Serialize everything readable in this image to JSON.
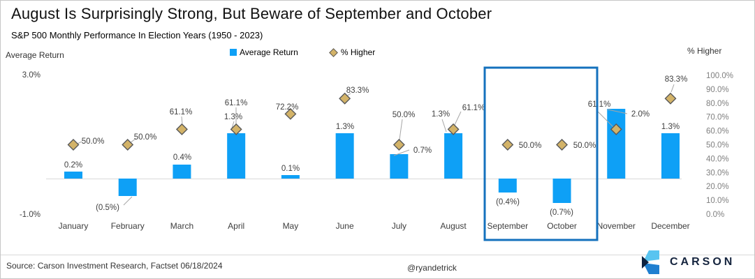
{
  "header": {
    "title": "August Is Surprisingly Strong, But Beware of September and October",
    "subtitle": "S&P 500 Monthly Performance In Election Years (1950 - 2023)"
  },
  "legend": {
    "items": [
      {
        "label": "Average Return",
        "marker": "blue-square"
      },
      {
        "label": "% Higher",
        "marker": "gold-diamond"
      }
    ]
  },
  "axes": {
    "left_title": "Average Return",
    "left_ticks": [
      "3.0%",
      "-1.0%"
    ],
    "right_title": "% Higher",
    "right_ticks": [
      "100.0%",
      "90.0%",
      "80.0%",
      "70.0%",
      "60.0%",
      "50.0%",
      "40.0%",
      "30.0%",
      "20.0%",
      "10.0%",
      "0.0%"
    ]
  },
  "chart_data": {
    "type": "combo-bar-scatter",
    "title": "S&P 500 Monthly Performance In Election Years (1950 - 2023)",
    "categories": [
      "January",
      "February",
      "March",
      "April",
      "May",
      "June",
      "July",
      "August",
      "September",
      "October",
      "November",
      "December"
    ],
    "series": [
      {
        "name": "Average Return",
        "type": "bar",
        "axis": "left",
        "color": "#0ea0f6",
        "values": [
          0.2,
          -0.5,
          0.4,
          1.3,
          0.1,
          1.3,
          0.7,
          1.3,
          -0.4,
          -0.7,
          2.0,
          1.3
        ],
        "labels": [
          "0.2%",
          "(0.5%)",
          "0.4%",
          "1.3%",
          "0.1%",
          "1.3%",
          "0.7%",
          "1.3%",
          "(0.4%)",
          "(0.7%)",
          "2.0%",
          "1.3%"
        ]
      },
      {
        "name": "% Higher",
        "type": "scatter-diamond",
        "axis": "right",
        "color": "#d3b368",
        "marker_border": "#595959",
        "values": [
          50.0,
          50.0,
          61.1,
          61.1,
          72.2,
          83.3,
          50.0,
          61.1,
          50.0,
          50.0,
          61.1,
          83.3
        ],
        "labels": [
          "50.0%",
          "50.0%",
          "61.1%",
          "61.1%",
          "72.2%",
          "83.3%",
          "50.0%",
          "61.1%",
          "50.0%",
          "50.0%",
          "61.1%",
          "83.3%"
        ]
      }
    ],
    "ylim_left": [
      -1.0,
      3.0
    ],
    "ylim_right": [
      0,
      100
    ],
    "grid": "zero-line-only",
    "legend_position": "top-center",
    "highlight": {
      "categories": [
        "September",
        "October"
      ],
      "color": "#1471bd"
    }
  },
  "footer": {
    "source": "Source: Carson Investment Research, Factset 06/18/2024",
    "handle": "@ryandetrick",
    "logo_text": "CARSON"
  }
}
